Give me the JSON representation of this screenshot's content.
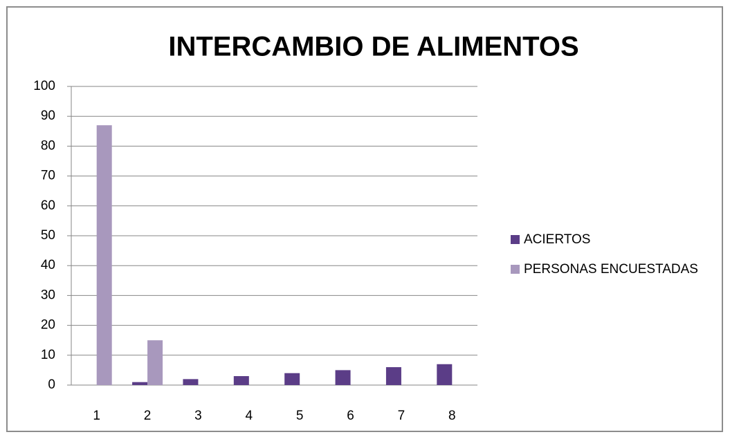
{
  "chart_data": {
    "type": "bar",
    "title": "INTERCAMBIO DE ALIMENTOS",
    "categories": [
      "1",
      "2",
      "3",
      "4",
      "5",
      "6",
      "7",
      "8"
    ],
    "series": [
      {
        "name": "ACIERTOS",
        "color": "#5b3d87",
        "values": [
          0,
          1,
          2,
          3,
          4,
          5,
          6,
          7
        ]
      },
      {
        "name": "PERSONAS ENCUESTADAS",
        "color": "#a898bd",
        "values": [
          87,
          15,
          0,
          0,
          0,
          0,
          0,
          0
        ]
      }
    ],
    "ylim": [
      0,
      100
    ],
    "yticks": [
      0,
      10,
      20,
      30,
      40,
      50,
      60,
      70,
      80,
      90,
      100
    ],
    "grid": true,
    "legend": "right"
  }
}
